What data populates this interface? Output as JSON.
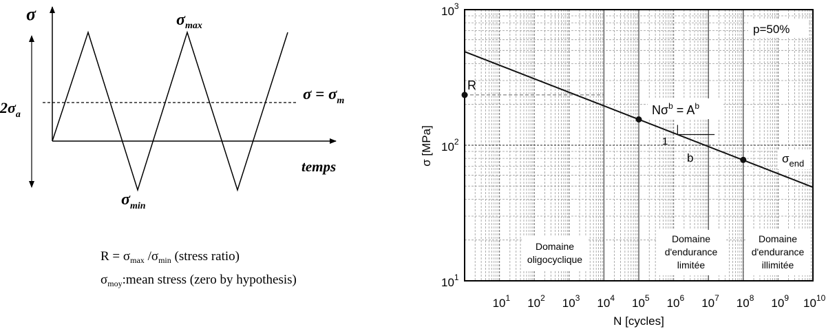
{
  "left_diagram": {
    "sigma_axis": "σ",
    "time_axis": "temps",
    "sigma_max": {
      "base": "σ",
      "sub": "max"
    },
    "sigma_min": {
      "base": "σ",
      "sub": "min"
    },
    "amplitude": {
      "prefix": "2σ",
      "sub": "a"
    },
    "mean_line": {
      "base": "σ = σ",
      "sub": "m"
    },
    "note_ratio": {
      "p1": "R = σ",
      "s1": "max",
      "p2": " /σ",
      "s2": "min",
      "p3": "  (stress ratio)"
    },
    "note_mean": {
      "p1": "σ",
      "s1": "moy",
      "p2": ":mean stress (zero by hypothesis)"
    }
  },
  "chart_data": {
    "type": "line",
    "xscale": "log",
    "yscale": "log",
    "xlim": [
      1,
      10000000000
    ],
    "ylim": [
      10,
      1000
    ],
    "grid": true,
    "xlabel": "N [cycles]",
    "ylabel": "σ [MPa]",
    "x_ticks": [
      {
        "base": "10",
        "exp": "1"
      },
      {
        "base": "10",
        "exp": "2"
      },
      {
        "base": "10",
        "exp": "3"
      },
      {
        "base": "10",
        "exp": "4"
      },
      {
        "base": "10",
        "exp": "5"
      },
      {
        "base": "10",
        "exp": "6"
      },
      {
        "base": "10",
        "exp": "7"
      },
      {
        "base": "10",
        "exp": "8"
      },
      {
        "base": "10",
        "exp": "9"
      },
      {
        "base": "10",
        "exp": "10"
      }
    ],
    "y_ticks": [
      {
        "base": "10",
        "exp": "1"
      },
      {
        "base": "10",
        "exp": "2"
      },
      {
        "base": "10",
        "exp": "3"
      }
    ],
    "series": [
      {
        "points": [
          [
            1,
            490
          ],
          [
            10000000000,
            49
          ]
        ]
      }
    ],
    "markers": [
      {
        "x": 1,
        "y": 235
      },
      {
        "x": 100000,
        "y": 155
      },
      {
        "x": 100000000,
        "y": 78
      }
    ],
    "annotations": {
      "probability": "p=50%",
      "R_label": "R",
      "basquin": {
        "a": "Nσ",
        "b_sup": "b",
        "c": " = A",
        "d_sup": "b"
      },
      "slope_1": "1",
      "slope_b": "b",
      "sigma_end": {
        "base": "σ",
        "sub": "end"
      }
    },
    "regions": [
      {
        "lines": [
          "Domaine",
          "oligocyclique"
        ]
      },
      {
        "lines": [
          "Domaine",
          "d'endurance",
          "limitée"
        ]
      },
      {
        "lines": [
          "Domaine",
          "d'endurance",
          "illimitée"
        ]
      }
    ]
  }
}
